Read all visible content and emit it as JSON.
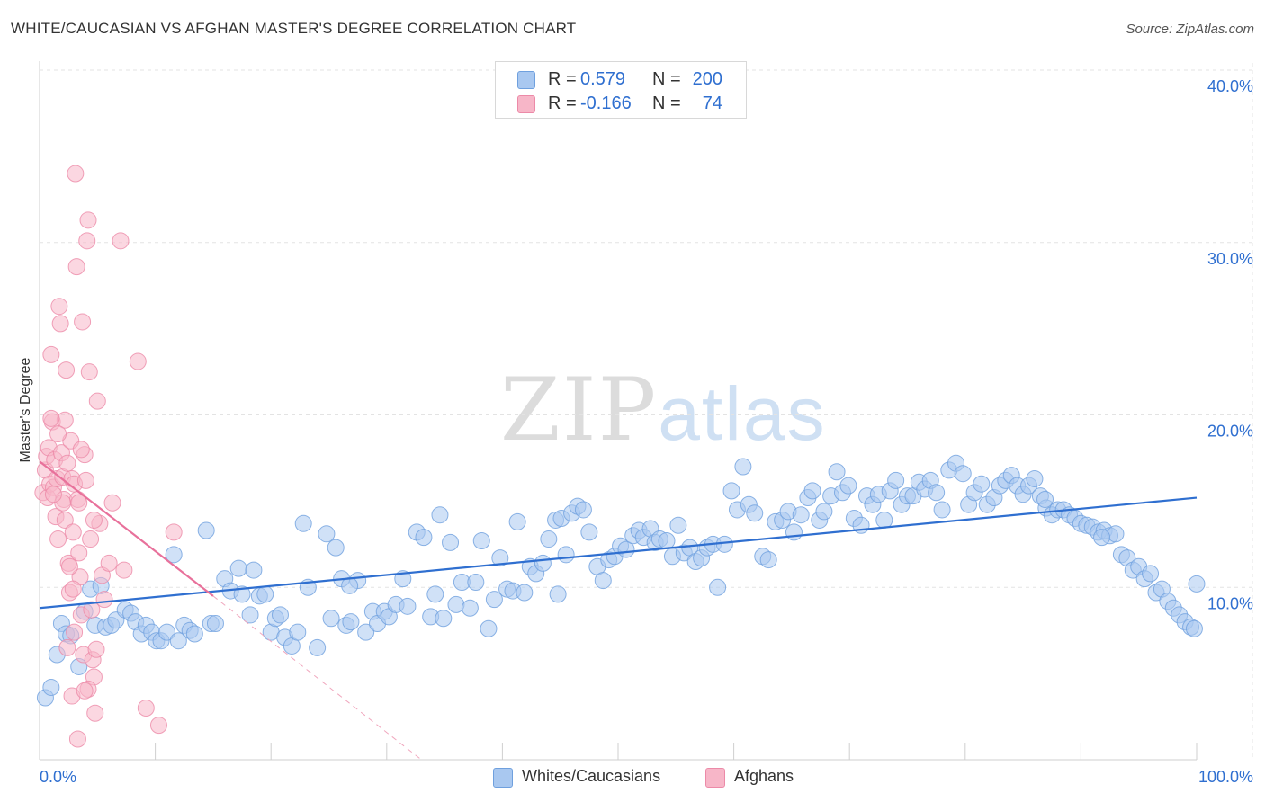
{
  "header": {
    "title": "WHITE/CAUCASIAN VS AFGHAN MASTER'S DEGREE CORRELATION CHART",
    "source": "Source: ZipAtlas.com"
  },
  "watermark": {
    "zip": "ZIP",
    "atlas": "atlas"
  },
  "legend": {
    "rows": [
      {
        "r_label": "R =",
        "r_value": "0.579",
        "n_label": "N =",
        "n_value": "200",
        "color": "#a9c8f0"
      },
      {
        "r_label": "R =",
        "r_value": "-0.166",
        "n_label": "N =",
        "n_value": "74",
        "color": "#f7b6c8"
      }
    ]
  },
  "bottom_legend": {
    "items": [
      {
        "label": "Whites/Caucasians",
        "color": "#a9c8f0"
      },
      {
        "label": "Afghans",
        "color": "#f7b6c8"
      }
    ]
  },
  "chart_data": {
    "type": "scatter",
    "title": "WHITE/CAUCASIAN VS AFGHAN MASTER'S DEGREE CORRELATION CHART",
    "xlabel": "",
    "ylabel": "Master's Degree",
    "xlim": [
      0,
      100
    ],
    "ylim": [
      0,
      40
    ],
    "x_tick_labels": [
      "0.0%",
      "100.0%"
    ],
    "y_ticks": [
      10,
      20,
      30,
      40
    ],
    "y_tick_labels": [
      "10.0%",
      "20.0%",
      "30.0%",
      "40.0%"
    ],
    "grid": true,
    "series": [
      {
        "name": "Whites/Caucasians",
        "color": "#a9c8f0",
        "stroke": "#6fa0de",
        "trend": {
          "x": [
            0,
            100
          ],
          "y": [
            8.8,
            15.2
          ],
          "color": "#2f6fd0"
        },
        "points": [
          [
            0.5,
            3.6
          ],
          [
            1.0,
            4.2
          ],
          [
            1.5,
            6.1
          ],
          [
            1.9,
            7.9
          ],
          [
            2.3,
            7.3
          ],
          [
            2.7,
            7.2
          ],
          [
            3.4,
            5.4
          ],
          [
            3.9,
            8.6
          ],
          [
            4.4,
            9.9
          ],
          [
            4.8,
            7.8
          ],
          [
            5.3,
            10.1
          ],
          [
            5.7,
            7.7
          ],
          [
            6.2,
            7.8
          ],
          [
            6.6,
            8.1
          ],
          [
            7.4,
            8.7
          ],
          [
            7.9,
            8.5
          ],
          [
            8.3,
            8.0
          ],
          [
            8.8,
            7.3
          ],
          [
            9.2,
            7.8
          ],
          [
            9.7,
            7.4
          ],
          [
            10.1,
            6.9
          ],
          [
            10.5,
            6.9
          ],
          [
            11.0,
            7.4
          ],
          [
            11.6,
            11.9
          ],
          [
            12.0,
            6.9
          ],
          [
            12.5,
            7.8
          ],
          [
            13.0,
            7.5
          ],
          [
            13.4,
            7.3
          ],
          [
            14.4,
            13.3
          ],
          [
            14.8,
            7.9
          ],
          [
            15.2,
            7.9
          ],
          [
            16.0,
            10.5
          ],
          [
            16.5,
            9.8
          ],
          [
            17.2,
            11.1
          ],
          [
            17.5,
            9.6
          ],
          [
            18.2,
            8.4
          ],
          [
            19.0,
            9.5
          ],
          [
            19.5,
            9.6
          ],
          [
            20.0,
            7.4
          ],
          [
            20.4,
            8.2
          ],
          [
            20.8,
            8.4
          ],
          [
            21.2,
            7.1
          ],
          [
            21.8,
            6.6
          ],
          [
            22.3,
            7.4
          ],
          [
            22.8,
            13.7
          ],
          [
            23.2,
            10.0
          ],
          [
            24.0,
            6.5
          ],
          [
            24.8,
            13.1
          ],
          [
            25.2,
            8.2
          ],
          [
            25.6,
            12.3
          ],
          [
            26.1,
            10.5
          ],
          [
            26.5,
            7.8
          ],
          [
            26.9,
            8.0
          ],
          [
            27.5,
            10.4
          ],
          [
            28.2,
            7.4
          ],
          [
            28.8,
            8.6
          ],
          [
            29.2,
            7.9
          ],
          [
            29.8,
            8.6
          ],
          [
            30.2,
            8.3
          ],
          [
            30.8,
            9.0
          ],
          [
            31.4,
            10.5
          ],
          [
            31.8,
            8.9
          ],
          [
            32.6,
            13.2
          ],
          [
            33.2,
            12.9
          ],
          [
            33.8,
            8.3
          ],
          [
            34.2,
            9.6
          ],
          [
            34.9,
            8.2
          ],
          [
            35.5,
            12.6
          ],
          [
            36.0,
            9.0
          ],
          [
            36.5,
            10.3
          ],
          [
            37.2,
            8.8
          ],
          [
            37.7,
            10.3
          ],
          [
            38.2,
            12.7
          ],
          [
            38.8,
            7.6
          ],
          [
            39.3,
            9.3
          ],
          [
            39.8,
            11.7
          ],
          [
            40.4,
            9.9
          ],
          [
            40.9,
            9.8
          ],
          [
            41.3,
            13.8
          ],
          [
            41.9,
            9.7
          ],
          [
            42.4,
            11.2
          ],
          [
            42.9,
            10.8
          ],
          [
            43.5,
            11.4
          ],
          [
            44.0,
            12.8
          ],
          [
            44.6,
            13.9
          ],
          [
            45.1,
            14.0
          ],
          [
            45.5,
            11.9
          ],
          [
            46.0,
            14.3
          ],
          [
            46.5,
            14.7
          ],
          [
            47.0,
            14.5
          ],
          [
            47.5,
            13.2
          ],
          [
            48.2,
            11.2
          ],
          [
            48.7,
            10.4
          ],
          [
            49.2,
            11.6
          ],
          [
            49.7,
            11.8
          ],
          [
            50.2,
            12.4
          ],
          [
            50.7,
            12.2
          ],
          [
            51.3,
            13.0
          ],
          [
            51.8,
            13.3
          ],
          [
            52.2,
            12.9
          ],
          [
            52.8,
            13.4
          ],
          [
            53.2,
            12.6
          ],
          [
            53.6,
            12.8
          ],
          [
            54.2,
            12.7
          ],
          [
            54.7,
            11.8
          ],
          [
            55.2,
            13.6
          ],
          [
            55.7,
            12.0
          ],
          [
            56.2,
            12.3
          ],
          [
            56.7,
            11.5
          ],
          [
            57.2,
            11.7
          ],
          [
            57.7,
            12.3
          ],
          [
            58.2,
            12.5
          ],
          [
            58.6,
            10.0
          ],
          [
            59.2,
            12.5
          ],
          [
            59.8,
            15.6
          ],
          [
            60.3,
            14.5
          ],
          [
            60.8,
            17.0
          ],
          [
            61.3,
            14.8
          ],
          [
            61.8,
            14.3
          ],
          [
            62.5,
            11.8
          ],
          [
            63.0,
            11.6
          ],
          [
            63.6,
            13.8
          ],
          [
            64.2,
            13.9
          ],
          [
            64.7,
            14.4
          ],
          [
            65.2,
            13.2
          ],
          [
            65.8,
            14.2
          ],
          [
            66.4,
            15.2
          ],
          [
            66.8,
            15.6
          ],
          [
            67.4,
            13.9
          ],
          [
            67.8,
            14.4
          ],
          [
            68.4,
            15.3
          ],
          [
            68.9,
            16.7
          ],
          [
            69.4,
            15.5
          ],
          [
            69.9,
            15.9
          ],
          [
            70.4,
            14.0
          ],
          [
            71.0,
            13.6
          ],
          [
            71.5,
            15.3
          ],
          [
            72.0,
            14.8
          ],
          [
            72.5,
            15.4
          ],
          [
            73.0,
            13.9
          ],
          [
            73.5,
            15.6
          ],
          [
            74.0,
            16.2
          ],
          [
            74.5,
            14.8
          ],
          [
            75.0,
            15.3
          ],
          [
            75.5,
            15.3
          ],
          [
            76.0,
            16.1
          ],
          [
            76.5,
            15.7
          ],
          [
            77.0,
            16.2
          ],
          [
            77.5,
            15.5
          ],
          [
            78.0,
            14.5
          ],
          [
            78.6,
            16.8
          ],
          [
            79.2,
            17.2
          ],
          [
            79.8,
            16.6
          ],
          [
            80.3,
            14.8
          ],
          [
            80.8,
            15.5
          ],
          [
            81.4,
            16.0
          ],
          [
            81.9,
            14.8
          ],
          [
            82.5,
            15.2
          ],
          [
            83.0,
            15.9
          ],
          [
            83.5,
            16.2
          ],
          [
            84.0,
            16.5
          ],
          [
            84.5,
            15.9
          ],
          [
            85.0,
            15.4
          ],
          [
            85.5,
            15.9
          ],
          [
            86.0,
            16.3
          ],
          [
            86.5,
            15.3
          ],
          [
            87.0,
            14.6
          ],
          [
            87.5,
            14.2
          ],
          [
            88.0,
            14.5
          ],
          [
            88.5,
            14.5
          ],
          [
            89.0,
            14.2
          ],
          [
            89.5,
            14.0
          ],
          [
            90.0,
            13.7
          ],
          [
            90.5,
            13.6
          ],
          [
            91.0,
            13.5
          ],
          [
            91.5,
            13.2
          ],
          [
            92.0,
            13.3
          ],
          [
            92.5,
            13.0
          ],
          [
            93.0,
            13.1
          ],
          [
            93.5,
            11.9
          ],
          [
            94.0,
            11.7
          ],
          [
            94.5,
            11.0
          ],
          [
            95.0,
            11.2
          ],
          [
            95.5,
            10.5
          ],
          [
            96.0,
            10.8
          ],
          [
            96.5,
            9.7
          ],
          [
            97.0,
            9.9
          ],
          [
            97.5,
            9.2
          ],
          [
            98.0,
            8.8
          ],
          [
            98.5,
            8.4
          ],
          [
            99.0,
            8.0
          ],
          [
            99.5,
            7.7
          ],
          [
            100.0,
            10.2
          ],
          [
            99.8,
            7.6
          ],
          [
            18.5,
            11.0
          ],
          [
            26.8,
            10.1
          ],
          [
            44.8,
            9.6
          ],
          [
            34.6,
            14.2
          ],
          [
            86.9,
            15.1
          ],
          [
            91.8,
            12.9
          ]
        ]
      },
      {
        "name": "Afghans",
        "color": "#f7b6c8",
        "stroke": "#ec8aa8",
        "trend": {
          "x": [
            0,
            15
          ],
          "y": [
            17.3,
            9.5
          ],
          "color": "#e8719b"
        },
        "trend_dashed": {
          "x": [
            15,
            33
          ],
          "y": [
            9.5,
            0
          ],
          "color": "#f0a6bd"
        },
        "points": [
          [
            0.3,
            15.5
          ],
          [
            0.5,
            16.8
          ],
          [
            0.6,
            17.6
          ],
          [
            0.7,
            15.2
          ],
          [
            0.8,
            18.1
          ],
          [
            0.9,
            16.0
          ],
          [
            1.0,
            23.5
          ],
          [
            1.1,
            19.6
          ],
          [
            1.2,
            15.8
          ],
          [
            1.3,
            17.4
          ],
          [
            1.4,
            14.1
          ],
          [
            1.5,
            16.3
          ],
          [
            1.6,
            12.8
          ],
          [
            1.7,
            26.3
          ],
          [
            1.8,
            25.3
          ],
          [
            1.9,
            17.8
          ],
          [
            2.0,
            16.4
          ],
          [
            2.1,
            15.1
          ],
          [
            2.2,
            13.9
          ],
          [
            2.3,
            22.6
          ],
          [
            2.4,
            17.2
          ],
          [
            2.5,
            11.4
          ],
          [
            2.6,
            9.7
          ],
          [
            2.7,
            18.5
          ],
          [
            2.8,
            16.3
          ],
          [
            2.9,
            13.2
          ],
          [
            3.0,
            16.0
          ],
          [
            3.1,
            34.0
          ],
          [
            3.2,
            28.6
          ],
          [
            3.3,
            15.1
          ],
          [
            3.4,
            12.0
          ],
          [
            3.5,
            10.6
          ],
          [
            3.6,
            8.4
          ],
          [
            3.7,
            25.4
          ],
          [
            3.8,
            6.1
          ],
          [
            3.9,
            17.7
          ],
          [
            4.0,
            16.2
          ],
          [
            4.1,
            30.1
          ],
          [
            4.2,
            31.3
          ],
          [
            4.3,
            22.5
          ],
          [
            4.4,
            12.8
          ],
          [
            4.5,
            8.7
          ],
          [
            4.6,
            5.8
          ],
          [
            4.7,
            4.8
          ],
          [
            4.8,
            2.7
          ],
          [
            4.9,
            6.4
          ],
          [
            5.0,
            20.8
          ],
          [
            5.2,
            13.7
          ],
          [
            5.4,
            10.7
          ],
          [
            5.6,
            9.3
          ],
          [
            6.0,
            11.4
          ],
          [
            6.3,
            14.9
          ],
          [
            7.0,
            30.1
          ],
          [
            7.3,
            11.0
          ],
          [
            8.5,
            23.1
          ],
          [
            9.2,
            3.0
          ],
          [
            10.3,
            2.0
          ],
          [
            11.6,
            13.2
          ],
          [
            2.0,
            14.9
          ],
          [
            2.2,
            19.7
          ],
          [
            1.2,
            15.4
          ],
          [
            3.0,
            7.4
          ],
          [
            4.2,
            4.1
          ],
          [
            1.6,
            18.9
          ],
          [
            2.6,
            11.2
          ],
          [
            3.6,
            18.0
          ],
          [
            2.8,
            3.7
          ],
          [
            3.3,
            1.2
          ],
          [
            2.4,
            6.5
          ],
          [
            1.0,
            19.8
          ],
          [
            3.9,
            4.0
          ],
          [
            2.9,
            9.9
          ],
          [
            3.4,
            14.9
          ],
          [
            4.7,
            13.9
          ]
        ]
      }
    ]
  }
}
